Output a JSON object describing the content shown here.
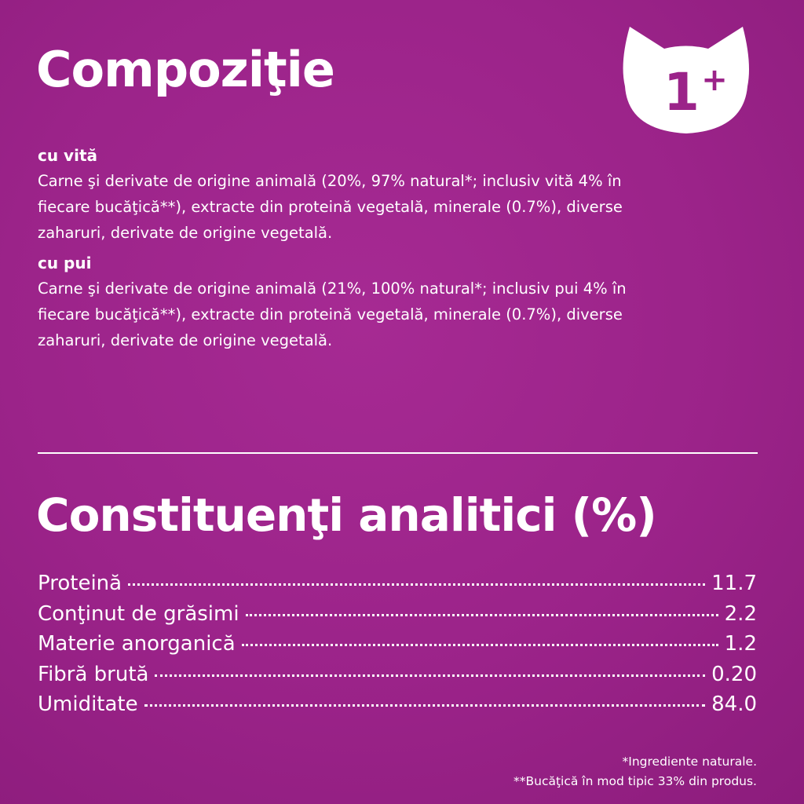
{
  "header": {
    "title": "Compoziţie",
    "badge": {
      "number": "1",
      "plus": "+"
    }
  },
  "composition": [
    {
      "heading": "cu vită",
      "lines": [
        "Carne şi derivate de origine animală (20%, 97% natural*; inclusiv vită 4% în",
        "fiecare bucăţică**), extracte din proteină vegetală, minerale (0.7%), diverse",
        "zaharuri, derivate de origine vegetală."
      ]
    },
    {
      "heading": "cu pui",
      "lines": [
        "Carne şi derivate de origine animală (21%, 100% natural*; inclusiv pui 4% în",
        "fiecare bucăţică**), extracte din proteină vegetală, minerale (0.7%), diverse",
        "zaharuri, derivate de origine vegetală."
      ]
    }
  ],
  "analysis": {
    "title": "Constituenţi analitici (%)",
    "rows": [
      [
        "Proteină",
        "11.7"
      ],
      [
        "Conţinut de grăsimi",
        "2.2"
      ],
      [
        "Materie anorganică",
        "1.2"
      ],
      [
        "Fibră brută",
        "0.20"
      ],
      [
        "Umiditate",
        "84.0"
      ]
    ]
  },
  "footnotes": [
    "*Ingrediente naturale.",
    "**Bucăţică în mod tipic 33% din produs."
  ]
}
